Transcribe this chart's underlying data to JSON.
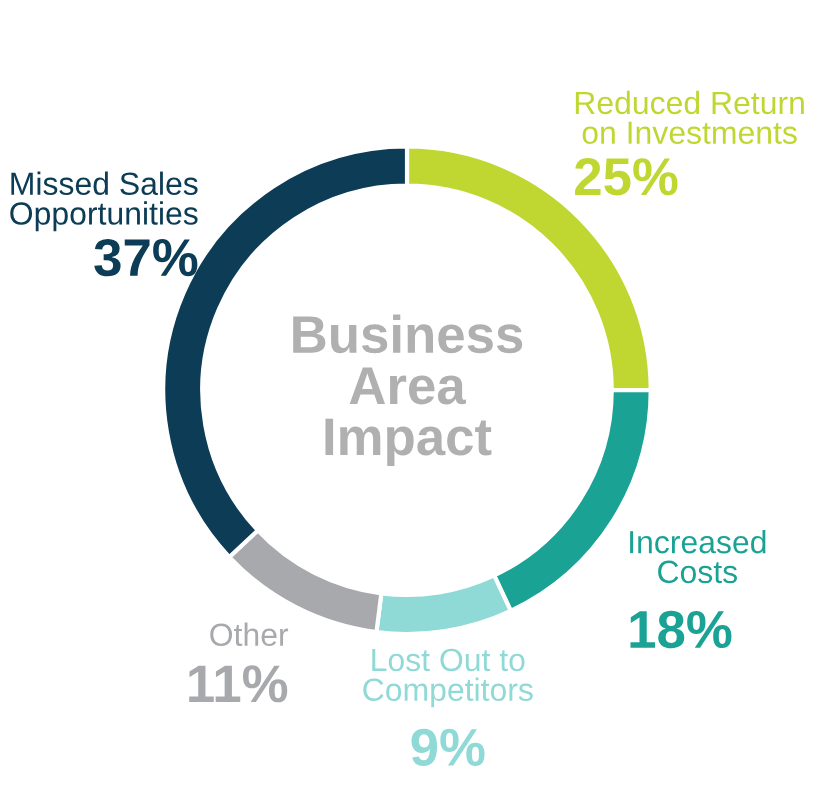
{
  "chart_data": {
    "type": "donut",
    "title": "Business\nArea\nImpact",
    "categories": [
      "Reduced Return\non Investments",
      "Increased\nCosts",
      "Lost Out to\nCompetitors",
      "Other",
      "Missed Sales\nOpportunities"
    ],
    "values": [
      25,
      18,
      9,
      11,
      37
    ],
    "colors": [
      "#bfd730",
      "#1aa394",
      "#8fd9d6",
      "#a7a9ac",
      "#0d3d56"
    ],
    "value_labels": [
      "25%",
      "18%",
      "9%",
      "11%",
      "37%"
    ],
    "legend": false
  }
}
